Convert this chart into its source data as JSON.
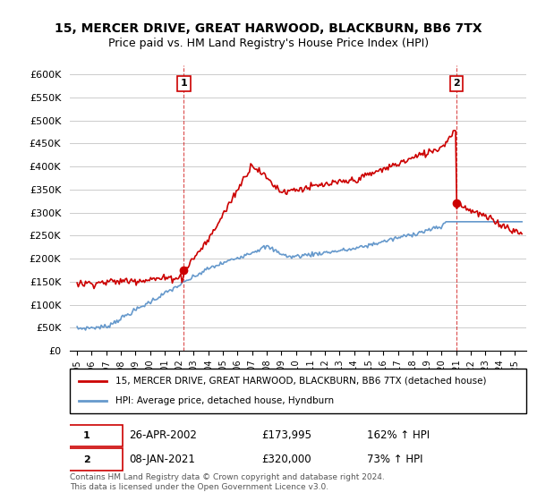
{
  "title": "15, MERCER DRIVE, GREAT HARWOOD, BLACKBURN, BB6 7TX",
  "subtitle": "Price paid vs. HM Land Registry's House Price Index (HPI)",
  "legend_line1": "15, MERCER DRIVE, GREAT HARWOOD, BLACKBURN, BB6 7TX (detached house)",
  "legend_line2": "HPI: Average price, detached house, Hyndburn",
  "sale1_label": "1",
  "sale1_date": "26-APR-2002",
  "sale1_price": "£173,995",
  "sale1_hpi": "162% ↑ HPI",
  "sale1_year": 2002.32,
  "sale1_value": 173995,
  "sale2_label": "2",
  "sale2_date": "08-JAN-2021",
  "sale2_price": "£320,000",
  "sale2_hpi": "73% ↑ HPI",
  "sale2_year": 2021.03,
  "sale2_value": 320000,
  "footer": "Contains HM Land Registry data © Crown copyright and database right 2024.\nThis data is licensed under the Open Government Licence v3.0.",
  "ylim": [
    0,
    620000
  ],
  "yticks": [
    0,
    50000,
    100000,
    150000,
    200000,
    250000,
    300000,
    350000,
    400000,
    450000,
    500000,
    550000,
    600000
  ],
  "ylabel_format": "£{0}K",
  "red_color": "#cc0000",
  "blue_color": "#6699cc",
  "bg_color": "#ffffff",
  "grid_color": "#cccccc"
}
